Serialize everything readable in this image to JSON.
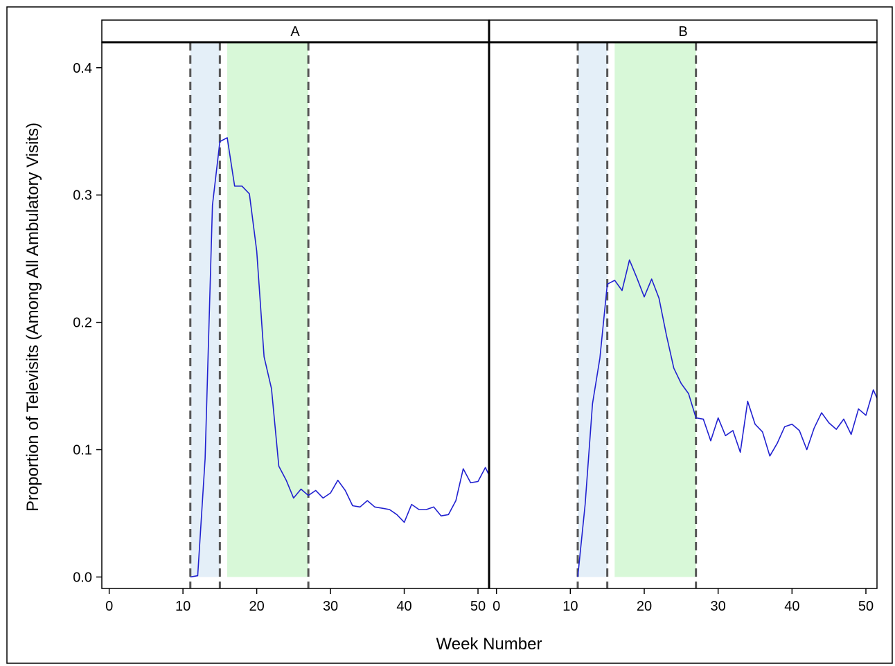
{
  "chart_data": {
    "type": "line",
    "xlabel": "Week Number",
    "ylabel": "Proportion of Televisits (Among All Ambulatory Visits)",
    "xlim": [
      -1,
      51.5
    ],
    "ylim": [
      -0.009,
      0.42
    ],
    "x_ticks": [
      0,
      10,
      20,
      30,
      40,
      50
    ],
    "y_ticks": [
      0.0,
      0.1,
      0.2,
      0.3,
      0.4
    ],
    "y_tick_labels": [
      "0.0",
      "0.1",
      "0.2",
      "0.3",
      "0.4"
    ],
    "grid": false,
    "legend": "none",
    "colors": {
      "line": "#2020d0",
      "shade_early": "#e4eff8",
      "shade_late": "#d8f8d8",
      "dashed_line": "#555555"
    },
    "panels": [
      {
        "label": "A",
        "shaded_regions": [
          {
            "x0": 11,
            "x1": 15,
            "kind": "early"
          },
          {
            "x0": 16,
            "x1": 27,
            "kind": "late"
          }
        ],
        "dashed_lines": [
          11,
          15,
          27
        ],
        "series": {
          "x": [
            11,
            12,
            13,
            14,
            15,
            16,
            17,
            18,
            19,
            20,
            21,
            22,
            23,
            24,
            25,
            26,
            27,
            28,
            29,
            30,
            31,
            32,
            33,
            34,
            35,
            36,
            37,
            38,
            39,
            40,
            41,
            42,
            43,
            44,
            45,
            46,
            47,
            48,
            49,
            50,
            51,
            52
          ],
          "y": [
            0.0,
            0.001,
            0.093,
            0.292,
            0.342,
            0.345,
            0.307,
            0.307,
            0.301,
            0.256,
            0.173,
            0.148,
            0.087,
            0.076,
            0.062,
            0.069,
            0.064,
            0.068,
            0.062,
            0.066,
            0.076,
            0.068,
            0.056,
            0.055,
            0.06,
            0.055,
            0.054,
            0.053,
            0.049,
            0.043,
            0.057,
            0.053,
            0.053,
            0.055,
            0.048,
            0.049,
            0.06,
            0.085,
            0.074,
            0.075,
            0.086,
            0.074
          ]
        }
      },
      {
        "label": "B",
        "shaded_regions": [
          {
            "x0": 11,
            "x1": 15,
            "kind": "early"
          },
          {
            "x0": 16,
            "x1": 27,
            "kind": "late"
          }
        ],
        "dashed_lines": [
          11,
          15,
          27
        ],
        "series": {
          "x": [
            11,
            12,
            13,
            14,
            15,
            16,
            17,
            18,
            19,
            20,
            21,
            22,
            23,
            24,
            25,
            26,
            27,
            28,
            29,
            30,
            31,
            32,
            33,
            34,
            35,
            36,
            37,
            38,
            39,
            40,
            41,
            42,
            43,
            44,
            45,
            46,
            47,
            48,
            49,
            50,
            51,
            52
          ],
          "y": [
            0.0,
            0.057,
            0.136,
            0.172,
            0.23,
            0.233,
            0.225,
            0.249,
            0.235,
            0.22,
            0.234,
            0.219,
            0.19,
            0.164,
            0.152,
            0.144,
            0.125,
            0.124,
            0.107,
            0.125,
            0.111,
            0.115,
            0.098,
            0.138,
            0.12,
            0.114,
            0.095,
            0.105,
            0.118,
            0.12,
            0.115,
            0.1,
            0.117,
            0.129,
            0.121,
            0.116,
            0.124,
            0.112,
            0.132,
            0.127,
            0.147,
            0.134
          ]
        }
      }
    ]
  }
}
